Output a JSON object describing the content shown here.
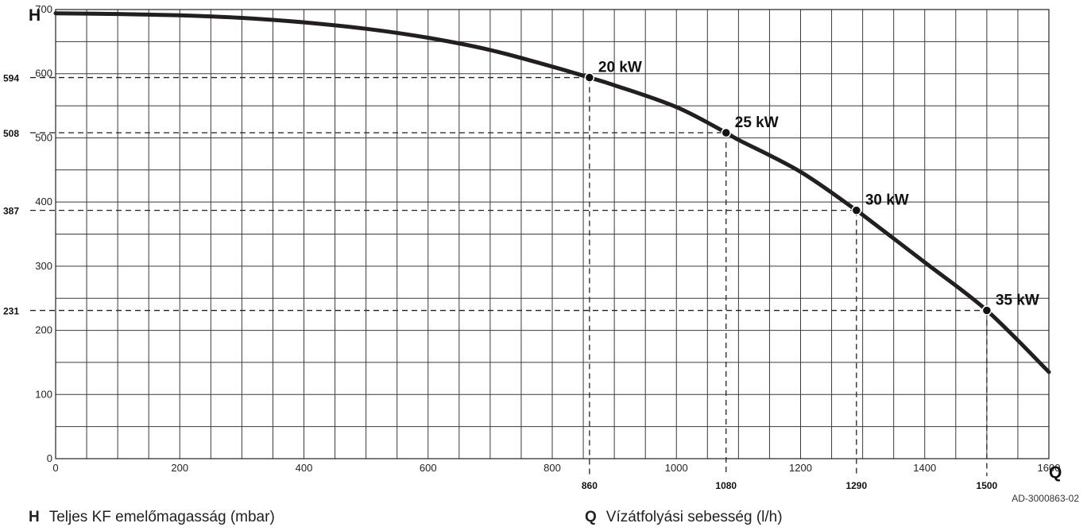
{
  "chart_data": {
    "type": "line",
    "axis_x_letter": "Q",
    "axis_y_letter": "H",
    "xlim": [
      0,
      1600
    ],
    "ylim": [
      0,
      700
    ],
    "x_ticks": [
      0,
      200,
      400,
      600,
      800,
      1000,
      1200,
      1400,
      1600
    ],
    "y_ticks": [
      0,
      100,
      200,
      300,
      400,
      500,
      600,
      700
    ],
    "grid": true,
    "series": [
      {
        "x": [
          0,
          100,
          200,
          300,
          400,
          500,
          600,
          700,
          800,
          860,
          900,
          1000,
          1080,
          1100,
          1200,
          1290,
          1300,
          1400,
          1500,
          1600
        ],
        "y": [
          694,
          693,
          691,
          687,
          680,
          670,
          656,
          637,
          611,
          594,
          582,
          548,
          508,
          497,
          447,
          387,
          380,
          306,
          231,
          135
        ]
      }
    ],
    "operating_points": [
      {
        "label": "20 kW",
        "q": 860,
        "h": 594,
        "q_text": "860",
        "h_text": "594"
      },
      {
        "label": "25 kW",
        "q": 1080,
        "h": 508,
        "q_text": "1080",
        "h_text": "508"
      },
      {
        "label": "30 kW",
        "q": 1290,
        "h": 387,
        "q_text": "1290",
        "h_text": "387"
      },
      {
        "label": "35 kW",
        "q": 1500,
        "h": 231,
        "q_text": "1500",
        "h_text": "231"
      }
    ],
    "code": "AD-3000863-02"
  },
  "legend": {
    "h_key": "H",
    "h_text": "Teljes KF emelőmagasság (mbar)",
    "q_key": "Q",
    "q_text": "Vízátfolyási sebesség (l/h)"
  },
  "colors": {
    "curve": "#231f20",
    "grid": "#3a3a3a",
    "dash": "#222222"
  }
}
